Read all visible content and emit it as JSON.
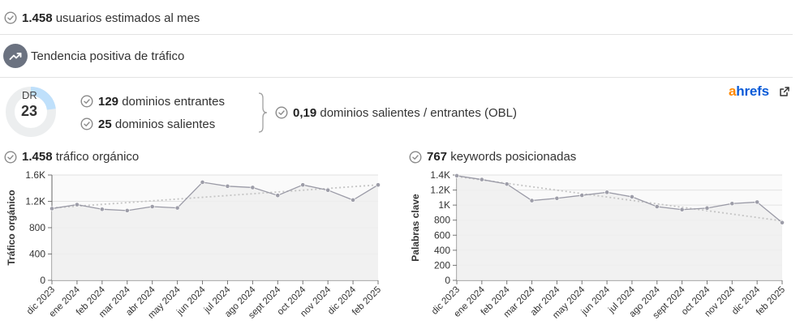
{
  "summary": {
    "users_value": "1.458",
    "users_label": "usuarios estimados al mes",
    "trend_label": "Tendencia positiva de tráfico"
  },
  "dr": {
    "label": "DR",
    "value": "23",
    "ring_fill_fraction": 0.23
  },
  "links": {
    "incoming_value": "129",
    "incoming_label": "dominios entrantes",
    "outgoing_value": "25",
    "outgoing_label": "dominios salientes",
    "obl_value": "0,19",
    "obl_label": "dominios salientes / entrantes (OBL)"
  },
  "brand": {
    "logo_a": "a",
    "logo_rest": "hrefs"
  },
  "colors": {
    "check": "#8a8a8a",
    "line": "#9a9aa6",
    "trend": "#c4c4c4",
    "area": "#eeeeee",
    "ring_bg": "#eceeef",
    "ring_fill": "#bfe0fb",
    "ahrefs_orange": "#ff8800",
    "ahrefs_blue": "#0a5bd8"
  },
  "icons": [
    "check-circle-icon",
    "trending-up-icon",
    "external-link-icon"
  ],
  "chart_titles": {
    "traffic_value": "1.458",
    "traffic_label": "tráfico orgánico",
    "keywords_value": "767",
    "keywords_label": "keywords posicionadas"
  },
  "chart_data": [
    {
      "type": "line",
      "ylabel": "Tráfico orgánico",
      "ylim": [
        0,
        1600
      ],
      "yticks": [
        0,
        400,
        800,
        1200,
        1600
      ],
      "yticklabels": [
        "0",
        "400",
        "800",
        "1.2K",
        "1.6K"
      ],
      "categories": [
        "dic 2023",
        "ene 2024",
        "feb 2024",
        "mar 2024",
        "abr 2024",
        "may 2024",
        "jun 2024",
        "jul 2024",
        "ago 2024",
        "sept 2024",
        "oct 2024",
        "nov 2024",
        "dic 2024",
        "feb 2025"
      ],
      "values": [
        1090,
        1150,
        1080,
        1060,
        1120,
        1100,
        1490,
        1430,
        1410,
        1290,
        1450,
        1370,
        1220,
        1450
      ],
      "trendline": [
        1100,
        1450
      ],
      "grid": true
    },
    {
      "type": "line",
      "ylabel": "Palabras clave",
      "ylim": [
        0,
        1400
      ],
      "yticks": [
        0,
        200,
        400,
        600,
        800,
        1000,
        1200,
        1400
      ],
      "yticklabels": [
        "0",
        "200",
        "400",
        "600",
        "800",
        "1K",
        "1.2K",
        "1.4K"
      ],
      "categories": [
        "dic 2023",
        "ene 2024",
        "feb 2024",
        "mar 2024",
        "abr 2024",
        "may 2024",
        "jun 2024",
        "jul 2024",
        "ago 2024",
        "sept 2024",
        "oct 2024",
        "nov 2024",
        "dic 2024",
        "feb 2025"
      ],
      "values": [
        1390,
        1340,
        1280,
        1060,
        1090,
        1130,
        1170,
        1110,
        980,
        940,
        960,
        1020,
        1040,
        767
      ],
      "trendline": [
        1380,
        790
      ],
      "grid": true
    }
  ]
}
